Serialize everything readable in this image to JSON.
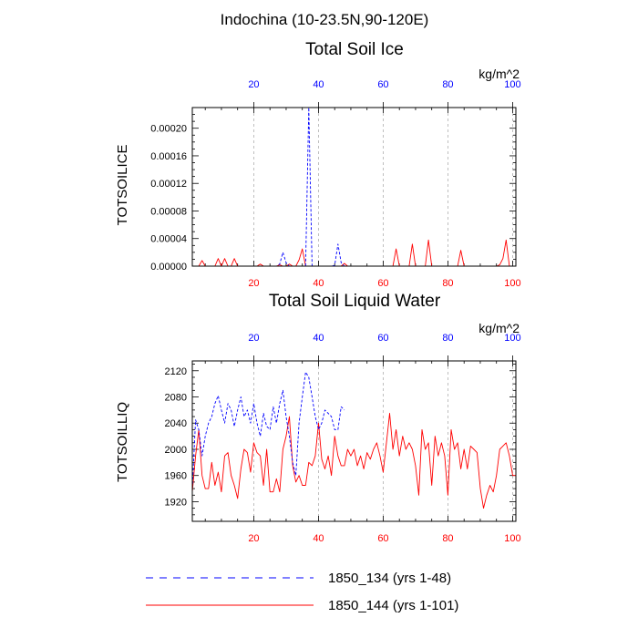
{
  "header": {
    "region_title": "Indochina (10-23.5N,90-120E)"
  },
  "colors": {
    "series_134": "#0000ff",
    "series_144": "#ff0000",
    "axis": "#000000",
    "grid": "#b0b0b0"
  },
  "chart_data": [
    {
      "type": "line",
      "title": "Total Soil Ice",
      "ylabel": "TOTSOILICE",
      "units": "kg/m^2",
      "xlim": [
        1,
        101
      ],
      "ylim": [
        0,
        0.00023
      ],
      "yticks": [
        "0.00000",
        "0.00004",
        "0.00008",
        "0.00012",
        "0.00016",
        "0.00020"
      ],
      "ytick_values": [
        0,
        4e-05,
        8e-05,
        0.00012,
        0.00016,
        0.0002
      ],
      "top_ticks": [
        "20",
        "40",
        "60",
        "80",
        "100"
      ],
      "bottom_ticks": [
        "20",
        "40",
        "60",
        "80",
        "100"
      ],
      "tick_values": [
        20,
        40,
        60,
        80,
        100
      ],
      "grid": "vertical dashed at 20,40,60,80,100",
      "series": [
        {
          "name": "1850_134 (yrs 1-48)",
          "color": "#0000ff",
          "dash": "dashed",
          "x": [
            1,
            2,
            3,
            4,
            5,
            6,
            7,
            8,
            9,
            10,
            11,
            12,
            13,
            14,
            15,
            16,
            17,
            18,
            19,
            20,
            21,
            22,
            23,
            24,
            25,
            26,
            27,
            28,
            29,
            30,
            31,
            32,
            33,
            34,
            35,
            36,
            37,
            38,
            39,
            40,
            41,
            42,
            43,
            44,
            45,
            46,
            47,
            48
          ],
          "values": [
            0,
            0,
            0,
            0,
            0,
            0,
            0,
            0,
            0,
            0,
            0,
            0,
            0,
            0,
            0,
            0,
            0,
            0,
            0,
            0,
            0,
            0,
            0,
            0,
            0,
            0,
            0,
            3e-06,
            2e-05,
            5e-06,
            0,
            0,
            0,
            0,
            0,
            0,
            0.00023,
            0,
            0,
            0,
            0,
            0,
            0,
            0,
            1e-06,
            3.2e-05,
            5e-06,
            0
          ]
        },
        {
          "name": "1850_144 (yrs 1-101)",
          "color": "#ff0000",
          "dash": "solid",
          "x": [
            1,
            2,
            3,
            4,
            5,
            6,
            7,
            8,
            9,
            10,
            11,
            12,
            13,
            14,
            15,
            16,
            17,
            18,
            19,
            20,
            21,
            22,
            23,
            24,
            25,
            26,
            27,
            28,
            29,
            30,
            31,
            32,
            33,
            34,
            35,
            36,
            37,
            38,
            39,
            40,
            41,
            42,
            43,
            44,
            45,
            46,
            47,
            48,
            49,
            50,
            51,
            52,
            53,
            54,
            55,
            56,
            57,
            58,
            59,
            60,
            61,
            62,
            63,
            64,
            65,
            66,
            67,
            68,
            69,
            70,
            71,
            72,
            73,
            74,
            75,
            76,
            77,
            78,
            79,
            80,
            81,
            82,
            83,
            84,
            85,
            86,
            87,
            88,
            89,
            90,
            91,
            92,
            93,
            94,
            95,
            96,
            97,
            98,
            99,
            100,
            101
          ],
          "values": [
            0,
            0,
            0,
            8e-06,
            0,
            0,
            0,
            0,
            1.1e-05,
            0,
            1.1e-05,
            0,
            0,
            1.1e-05,
            0,
            0,
            0,
            0,
            0,
            0,
            0,
            3e-06,
            0,
            0,
            0,
            0,
            0,
            2e-06,
            0,
            0,
            3e-06,
            0,
            0,
            9e-06,
            2.5e-05,
            0,
            0,
            0,
            0,
            0,
            0,
            0,
            0,
            0,
            0,
            0,
            0,
            4e-06,
            0,
            0,
            0,
            0,
            0,
            0,
            0,
            0,
            0,
            0,
            0,
            0,
            0,
            0,
            0,
            2.5e-05,
            0,
            0,
            0,
            0,
            3.2e-05,
            0,
            0,
            0,
            0,
            3.8e-05,
            0,
            0,
            0,
            0,
            0,
            0,
            0,
            0,
            0,
            2.3e-05,
            0,
            0,
            0,
            0,
            0,
            0,
            0,
            0,
            0,
            0,
            0,
            2e-06,
            1.1e-05,
            3.8e-05,
            0,
            0,
            0
          ]
        }
      ]
    },
    {
      "type": "line",
      "title": "Total Soil Liquid Water",
      "ylabel": "TOTSOILLIQ",
      "units": "kg/m^2",
      "xlim": [
        1,
        101
      ],
      "ylim": [
        1890,
        2135
      ],
      "yticks": [
        "1920",
        "1960",
        "2000",
        "2040",
        "2080",
        "2120"
      ],
      "ytick_values": [
        1920,
        1960,
        2000,
        2040,
        2080,
        2120
      ],
      "top_ticks": [
        "20",
        "40",
        "60",
        "80",
        "100"
      ],
      "bottom_ticks": [
        "20",
        "40",
        "60",
        "80",
        "100"
      ],
      "tick_values": [
        20,
        40,
        60,
        80,
        100
      ],
      "grid": "vertical dashed at 20,40,60,80,100",
      "series": [
        {
          "name": "1850_134 (yrs 1-48)",
          "color": "#0000ff",
          "dash": "dashed",
          "x": [
            1,
            2,
            3,
            4,
            5,
            6,
            7,
            8,
            9,
            10,
            11,
            12,
            13,
            14,
            15,
            16,
            17,
            18,
            19,
            20,
            21,
            22,
            23,
            24,
            25,
            26,
            27,
            28,
            29,
            30,
            31,
            32,
            33,
            34,
            35,
            36,
            37,
            38,
            39,
            40,
            41,
            42,
            43,
            44,
            45,
            46,
            47,
            48
          ],
          "values": [
            1940,
            2045,
            2030,
            1990,
            2020,
            2040,
            2050,
            2070,
            2082,
            2060,
            2040,
            2070,
            2060,
            2035,
            2060,
            2080,
            2050,
            2060,
            2040,
            2070,
            2040,
            2020,
            2055,
            2035,
            2030,
            2065,
            2040,
            2070,
            2090,
            2050,
            2020,
            1980,
            1960,
            2040,
            2080,
            2118,
            2110,
            2080,
            2050,
            2030,
            2040,
            2060,
            2055,
            2050,
            2030,
            2030,
            2065,
            2060
          ]
        },
        {
          "name": "1850_144 (yrs 1-101)",
          "color": "#ff0000",
          "dash": "solid",
          "x": [
            1,
            2,
            3,
            4,
            5,
            6,
            7,
            8,
            9,
            10,
            11,
            12,
            13,
            14,
            15,
            16,
            17,
            18,
            19,
            20,
            21,
            22,
            23,
            24,
            25,
            26,
            27,
            28,
            29,
            30,
            31,
            32,
            33,
            34,
            35,
            36,
            37,
            38,
            39,
            40,
            41,
            42,
            43,
            44,
            45,
            46,
            47,
            48,
            49,
            50,
            51,
            52,
            53,
            54,
            55,
            56,
            57,
            58,
            59,
            60,
            61,
            62,
            63,
            64,
            65,
            66,
            67,
            68,
            69,
            70,
            71,
            72,
            73,
            74,
            75,
            76,
            77,
            78,
            79,
            80,
            81,
            82,
            83,
            84,
            85,
            86,
            87,
            88,
            89,
            90,
            91,
            92,
            93,
            94,
            95,
            96,
            97,
            98,
            99,
            100,
            101
          ],
          "values": [
            1935,
            1990,
            2030,
            1960,
            1940,
            1940,
            1980,
            1945,
            1965,
            1935,
            1990,
            1995,
            1960,
            1945,
            1925,
            1970,
            2000,
            1995,
            1965,
            2010,
            1995,
            1990,
            1945,
            2000,
            1935,
            1935,
            1955,
            1935,
            2000,
            2020,
            2050,
            1975,
            1950,
            1960,
            1945,
            1945,
            1980,
            1975,
            1990,
            2040,
            1985,
            1970,
            1990,
            1960,
            2020,
            1990,
            1975,
            1975,
            2000,
            1990,
            2000,
            1975,
            1990,
            1970,
            1995,
            1985,
            2000,
            2010,
            1990,
            1965,
            2010,
            2055,
            2000,
            2030,
            1990,
            2020,
            2000,
            2010,
            2000,
            1975,
            1930,
            2030,
            2000,
            2010,
            1945,
            2020,
            1990,
            2010,
            1990,
            1930,
            2030,
            2000,
            2010,
            1970,
            2000,
            1970,
            2005,
            2000,
            1995,
            1940,
            1910,
            1930,
            1945,
            1935,
            1960,
            2000,
            2005,
            2010,
            1990,
            1960,
            1960
          ]
        }
      ]
    }
  ],
  "legend": {
    "items": [
      {
        "label": "1850_134 (yrs 1-48)",
        "color": "#0000ff",
        "dash": "dashed"
      },
      {
        "label": "1850_144 (yrs 1-101)",
        "color": "#ff0000",
        "dash": "solid"
      }
    ]
  }
}
